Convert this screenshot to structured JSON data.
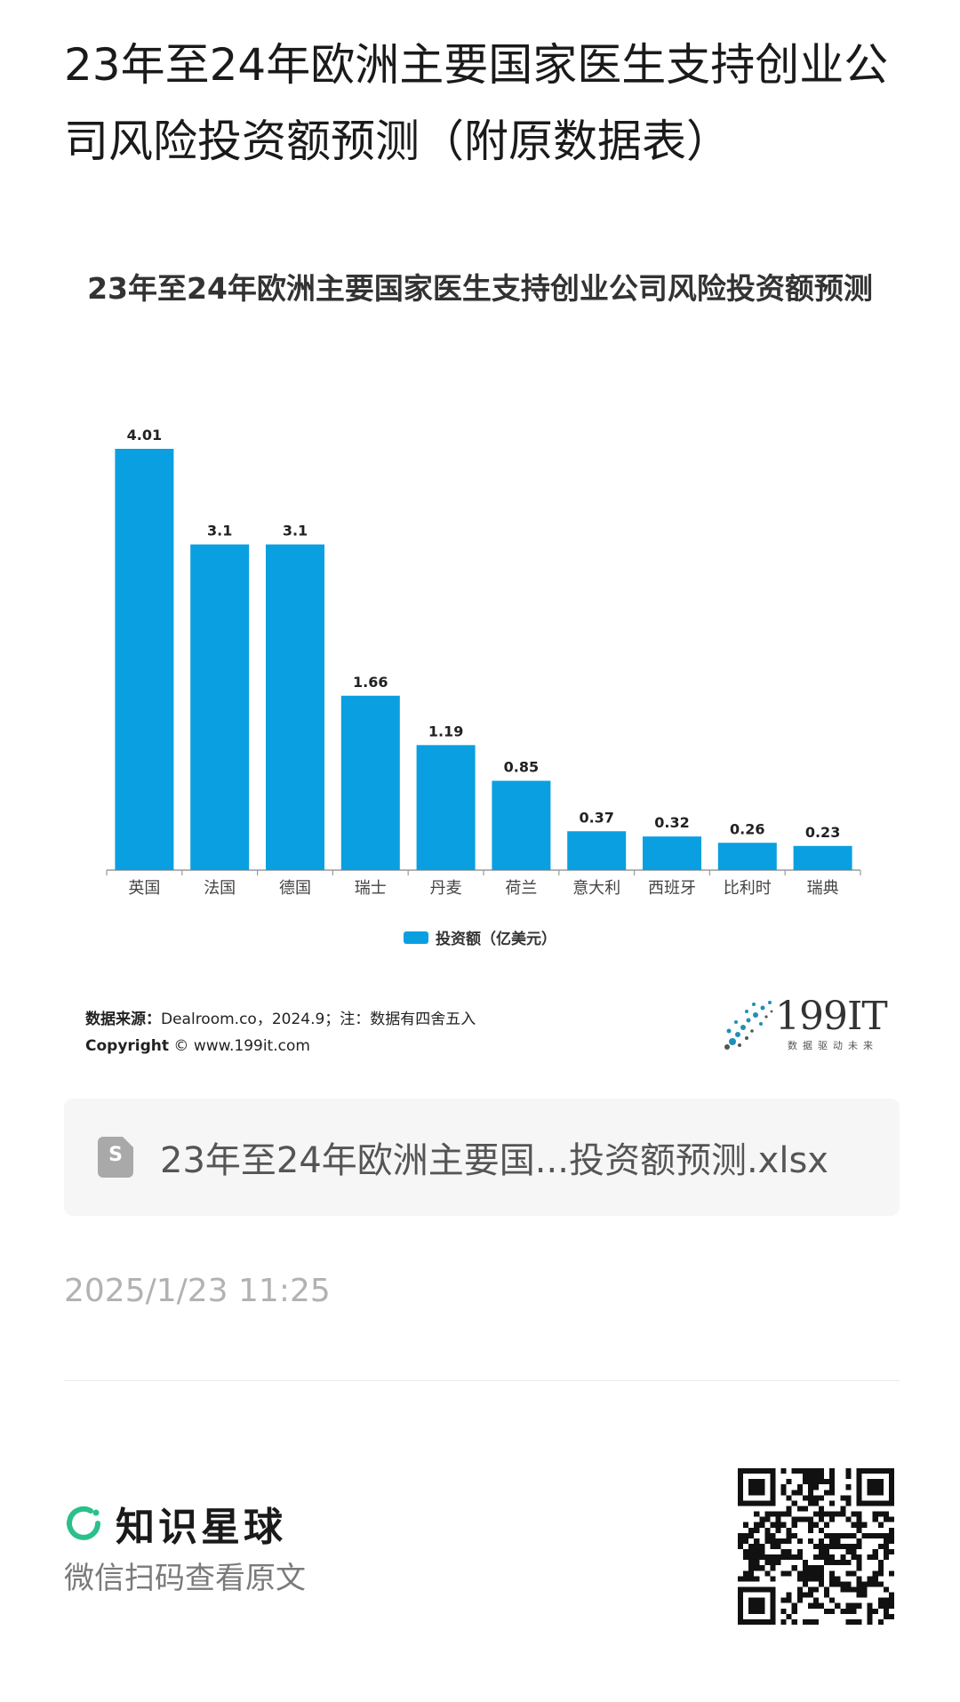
{
  "article": {
    "title": "23年至24年欧洲主要国家医生支持创业公司风险投资额预测（附原数据表）"
  },
  "chart_data": {
    "type": "bar",
    "title": "23年至24年欧洲主要国家医生支持创业公司风险投资额预测",
    "categories": [
      "英国",
      "法国",
      "德国",
      "瑞士",
      "丹麦",
      "荷兰",
      "意大利",
      "西班牙",
      "比利时",
      "瑞典"
    ],
    "series": [
      {
        "name": "投资额（亿美元）",
        "values": [
          4.01,
          3.1,
          3.1,
          1.66,
          1.19,
          0.85,
          0.37,
          0.32,
          0.26,
          0.23
        ],
        "color": "#0a9fe0"
      }
    ],
    "data_labels": [
      "4.01",
      "3.1",
      "3.1",
      "1.66",
      "1.19",
      "0.85",
      "0.37",
      "0.32",
      "0.26",
      "0.23"
    ],
    "ylim": [
      0,
      4.01
    ],
    "grid": false,
    "legend_position": "bottom"
  },
  "source": {
    "label": "数据来源：",
    "text": "Dealroom.co，2024.9；注：数据有四舍五入",
    "copyright_label": "Copyright",
    "copyright_symbol": "©",
    "copyright_url": "www.199it.com"
  },
  "brand": {
    "name": "199IT",
    "slogan": "数据驱动未来",
    "logo_icon": "dandelion-dots-icon"
  },
  "file": {
    "icon": "spreadsheet-file-icon",
    "icon_letter": "S",
    "name": "23年至24年欧洲主要国...投资额预测.xlsx"
  },
  "timestamp": "2025/1/23 11:25",
  "footer": {
    "brand_icon": "ring-logo-icon",
    "brand_color": "#2bc08a",
    "brand_name": "知识星球",
    "hint": "微信扫码查看原文",
    "qr_icon": "qr-code-icon"
  }
}
